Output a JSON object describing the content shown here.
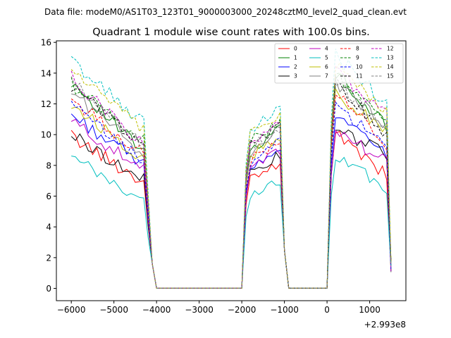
{
  "chart_data": {
    "type": "line",
    "suptitle": "Data file: modeM0/AS1T03_123T01_9000003000_20248cztM0_level2_quad_clean.evt",
    "title": "Quadrant 1 module wise count rates with 100.0s bins.",
    "xlabel": "",
    "ylabel": "",
    "offset_label": "+2.993e8",
    "xlim": [
      -6350,
      1850
    ],
    "ylim": [
      -0.8,
      16.1
    ],
    "x_ticks": [
      -6000,
      -5000,
      -4000,
      -3000,
      -2000,
      -1000,
      0,
      1000
    ],
    "x_tick_labels": [
      "−6000",
      "−5000",
      "−4000",
      "−3000",
      "−2000",
      "−1000",
      "0",
      "1000"
    ],
    "y_ticks": [
      0,
      2,
      4,
      6,
      8,
      10,
      12,
      14,
      16
    ],
    "y_tick_labels": [
      "0",
      "2",
      "4",
      "6",
      "8",
      "10",
      "12",
      "14",
      "16"
    ],
    "legend_position": "top-right",
    "series": [
      {
        "name": "0",
        "color": "#ff0000",
        "dash": "solid",
        "s1": [
          9.9,
          6.9
        ],
        "s2": [
          7.0,
          8.1
        ],
        "s3": [
          10.3,
          7.3
        ]
      },
      {
        "name": "1",
        "color": "#008000",
        "dash": "solid",
        "s1": [
          13.5,
          8.8
        ],
        "s2": [
          9.0,
          10.5
        ],
        "s3": [
          14.0,
          10.5
        ]
      },
      {
        "name": "2",
        "color": "#0000ff",
        "dash": "solid",
        "s1": [
          11.3,
          8.0
        ],
        "s2": [
          8.0,
          9.3
        ],
        "s3": [
          11.2,
          8.6
        ]
      },
      {
        "name": "3",
        "color": "#000000",
        "dash": "solid",
        "s1": [
          10.0,
          7.0
        ],
        "s2": [
          7.6,
          8.6
        ],
        "s3": [
          10.3,
          8.8
        ]
      },
      {
        "name": "4",
        "color": "#bf00bf",
        "dash": "solid",
        "s1": [
          10.9,
          7.6
        ],
        "s2": [
          7.6,
          9.0
        ],
        "s3": [
          10.4,
          8.1
        ]
      },
      {
        "name": "5",
        "color": "#00bfbf",
        "dash": "solid",
        "s1": [
          8.5,
          5.6
        ],
        "s2": [
          6.0,
          7.1
        ],
        "s3": [
          8.4,
          6.6
        ]
      },
      {
        "name": "6",
        "color": "#bfbf00",
        "dash": "solid",
        "s1": [
          12.0,
          8.4
        ],
        "s2": [
          8.6,
          10.0
        ],
        "s3": [
          12.6,
          10.3
        ]
      },
      {
        "name": "7",
        "color": "#808080",
        "dash": "solid",
        "s1": [
          12.8,
          8.8
        ],
        "s2": [
          8.8,
          10.4
        ],
        "s3": [
          13.3,
          10.6
        ]
      },
      {
        "name": "8",
        "color": "#ff0000",
        "dash": "dashed",
        "s1": [
          12.3,
          8.7
        ],
        "s2": [
          8.3,
          9.5
        ],
        "s3": [
          12.9,
          9.0
        ]
      },
      {
        "name": "9",
        "color": "#008000",
        "dash": "dashed",
        "s1": [
          13.3,
          9.6
        ],
        "s2": [
          9.6,
          10.8
        ],
        "s3": [
          13.9,
          10.6
        ]
      },
      {
        "name": "10",
        "color": "#0000ff",
        "dash": "dashed",
        "s1": [
          11.9,
          8.2
        ],
        "s2": [
          8.2,
          9.6
        ],
        "s3": [
          11.9,
          9.2
        ]
      },
      {
        "name": "11",
        "color": "#000000",
        "dash": "dashed",
        "s1": [
          13.1,
          9.4
        ],
        "s2": [
          9.4,
          10.6
        ],
        "s3": [
          13.5,
          9.9
        ]
      },
      {
        "name": "12",
        "color": "#bf00bf",
        "dash": "dashed",
        "s1": [
          13.7,
          9.3
        ],
        "s2": [
          9.4,
          11.0
        ],
        "s3": [
          14.2,
          11.3
        ]
      },
      {
        "name": "13",
        "color": "#00bfbf",
        "dash": "dashed",
        "s1": [
          14.8,
          10.7
        ],
        "s2": [
          10.4,
          11.6
        ],
        "s3": [
          15.2,
          12.0
        ]
      },
      {
        "name": "14",
        "color": "#bfbf00",
        "dash": "dashed",
        "s1": [
          14.3,
          10.2
        ],
        "s2": [
          10.0,
          11.1
        ],
        "s3": [
          14.6,
          11.6
        ]
      },
      {
        "name": "15",
        "color": "#808080",
        "dash": "dashed",
        "s1": [
          13.4,
          9.4
        ],
        "s2": [
          9.1,
          10.5
        ],
        "s3": [
          13.6,
          10.2
        ]
      }
    ]
  }
}
